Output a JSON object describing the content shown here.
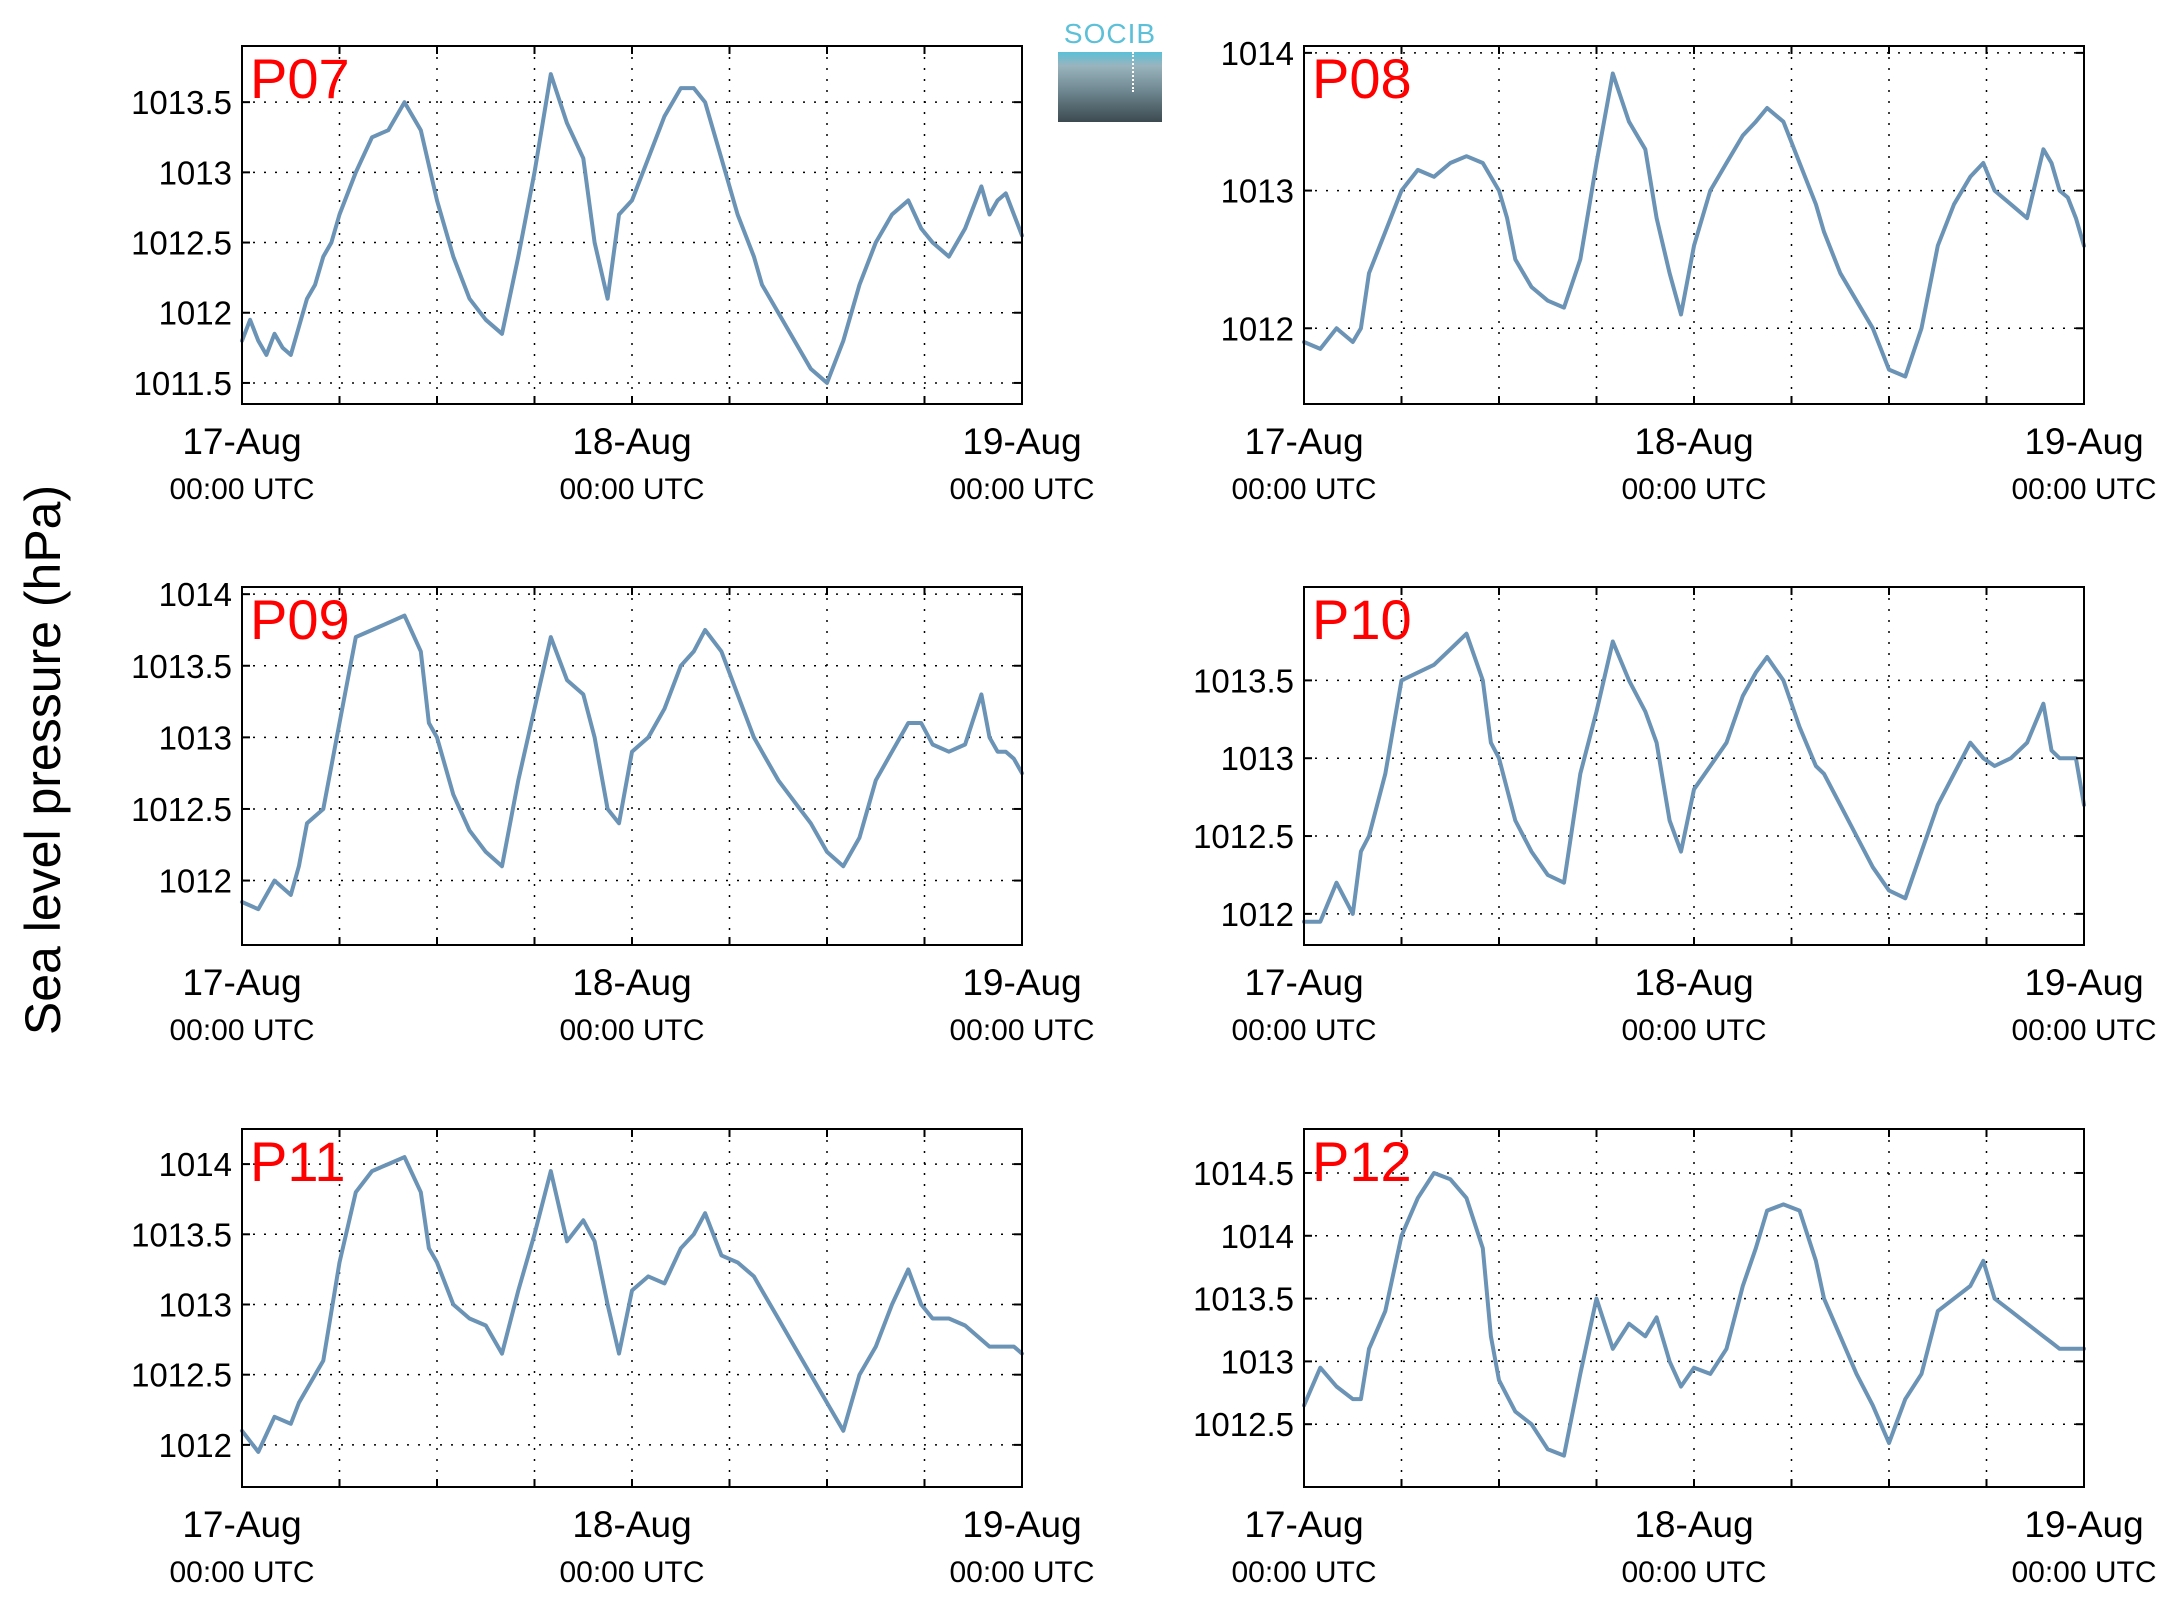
{
  "figure": {
    "ylabel": "Sea level pressure (hPa)",
    "logo_text": "SOCIB",
    "colors": {
      "line": "#6a93b5",
      "panel_label": "#ff0000",
      "axes": "#000000",
      "grid": "#000000"
    }
  },
  "chart_data": [
    {
      "type": "line",
      "panel": "P07",
      "grid": true,
      "x_ticks": [
        {
          "label": "17-Aug",
          "sub": "00:00 UTC",
          "x": 0
        },
        {
          "label": "18-Aug",
          "sub": "00:00 UTC",
          "x": 24
        },
        {
          "label": "19-Aug",
          "sub": "00:00 UTC",
          "x": 48
        }
      ],
      "xlim": [
        0,
        48
      ],
      "ylim": [
        1011.35,
        1013.9
      ],
      "yticks": [
        1011.5,
        1012,
        1012.5,
        1013,
        1013.5
      ],
      "x": [
        0,
        0.5,
        1,
        1.5,
        2,
        2.5,
        3,
        3.5,
        4,
        4.5,
        5,
        5.5,
        6,
        7,
        8,
        9,
        10,
        11,
        12,
        13,
        14,
        15,
        16,
        17,
        18,
        19,
        20,
        21,
        21.7,
        22.5,
        23.2,
        24,
        25,
        26,
        27,
        27.8,
        28.5,
        29.5,
        30.5,
        31.5,
        32,
        33,
        34,
        35,
        36,
        37,
        38,
        39,
        40,
        41,
        41.8,
        42.5,
        43.5,
        44.5,
        45.5,
        46,
        46.5,
        47,
        47.5,
        48
      ],
      "y": [
        1011.8,
        1011.95,
        1011.8,
        1011.7,
        1011.85,
        1011.75,
        1011.7,
        1011.9,
        1012.1,
        1012.2,
        1012.4,
        1012.5,
        1012.7,
        1013,
        1013.25,
        1013.3,
        1013.5,
        1013.3,
        1012.8,
        1012.4,
        1012.1,
        1011.95,
        1011.85,
        1012.4,
        1013,
        1013.7,
        1013.35,
        1013.1,
        1012.5,
        1012.1,
        1012.7,
        1012.8,
        1013.1,
        1013.4,
        1013.6,
        1013.6,
        1013.5,
        1013.1,
        1012.7,
        1012.4,
        1012.2,
        1012,
        1011.8,
        1011.6,
        1011.5,
        1011.8,
        1012.2,
        1012.5,
        1012.7,
        1012.8,
        1012.6,
        1012.5,
        1012.4,
        1012.6,
        1012.9,
        1012.7,
        1012.8,
        1012.85,
        1012.7,
        1012.55
      ]
    },
    {
      "type": "line",
      "panel": "P08",
      "grid": true,
      "x_ticks": [
        {
          "label": "17-Aug",
          "sub": "00:00 UTC",
          "x": 0
        },
        {
          "label": "18-Aug",
          "sub": "00:00 UTC",
          "x": 24
        },
        {
          "label": "19-Aug",
          "sub": "00:00 UTC",
          "x": 48
        }
      ],
      "xlim": [
        0,
        48
      ],
      "ylim": [
        1011.45,
        1014.05
      ],
      "yticks": [
        1012,
        1013,
        1014
      ],
      "x": [
        0,
        1,
        2,
        3,
        3.5,
        4,
        5,
        6,
        7,
        8,
        9,
        10,
        11,
        12,
        12.5,
        13,
        14,
        15,
        16,
        17,
        18,
        19,
        20,
        21,
        21.7,
        22.5,
        23.2,
        24,
        25,
        26,
        27,
        27.8,
        28.5,
        29.5,
        30.5,
        31.5,
        32,
        33,
        34,
        35,
        36,
        37,
        38,
        39,
        40,
        41,
        41.8,
        42.5,
        43.5,
        44.5,
        45.5,
        46,
        46.5,
        47,
        47.5,
        48
      ],
      "y": [
        1011.9,
        1011.85,
        1012,
        1011.9,
        1012,
        1012.4,
        1012.7,
        1013,
        1013.15,
        1013.1,
        1013.2,
        1013.25,
        1013.2,
        1013,
        1012.8,
        1012.5,
        1012.3,
        1012.2,
        1012.15,
        1012.5,
        1013.2,
        1013.85,
        1013.5,
        1013.3,
        1012.8,
        1012.4,
        1012.1,
        1012.6,
        1013.0,
        1013.2,
        1013.4,
        1013.5,
        1013.6,
        1013.5,
        1013.2,
        1012.9,
        1012.7,
        1012.4,
        1012.2,
        1012,
        1011.7,
        1011.65,
        1012.0,
        1012.6,
        1012.9,
        1013.1,
        1013.2,
        1013.0,
        1012.9,
        1012.8,
        1013.3,
        1013.2,
        1013.0,
        1012.95,
        1012.8,
        1012.6
      ]
    },
    {
      "type": "line",
      "panel": "P09",
      "grid": true,
      "x_ticks": [
        {
          "label": "17-Aug",
          "sub": "00:00 UTC",
          "x": 0
        },
        {
          "label": "18-Aug",
          "sub": "00:00 UTC",
          "x": 24
        },
        {
          "label": "19-Aug",
          "sub": "00:00 UTC",
          "x": 48
        }
      ],
      "xlim": [
        0,
        48
      ],
      "ylim": [
        1011.55,
        1014.05
      ],
      "yticks": [
        1012,
        1012.5,
        1013,
        1013.5,
        1014
      ],
      "x": [
        0,
        1,
        2,
        3,
        3.5,
        4,
        5,
        6,
        7,
        8,
        9,
        10,
        11,
        11.5,
        12,
        13,
        14,
        15,
        16,
        17,
        18,
        19,
        20,
        21,
        21.7,
        22.5,
        23.2,
        24,
        25,
        26,
        27,
        27.8,
        28.5,
        29.5,
        30.5,
        31.5,
        32,
        33,
        34,
        35,
        36,
        37,
        38,
        39,
        40,
        41,
        41.8,
        42.5,
        43.5,
        44.5,
        45.5,
        46,
        46.5,
        47,
        47.5,
        48
      ],
      "y": [
        1011.85,
        1011.8,
        1012,
        1011.9,
        1012.1,
        1012.4,
        1012.5,
        1013.1,
        1013.7,
        1013.75,
        1013.8,
        1013.85,
        1013.6,
        1013.1,
        1013.0,
        1012.6,
        1012.35,
        1012.2,
        1012.1,
        1012.7,
        1013.2,
        1013.7,
        1013.4,
        1013.3,
        1013.0,
        1012.5,
        1012.4,
        1012.9,
        1013.0,
        1013.2,
        1013.5,
        1013.6,
        1013.75,
        1013.6,
        1013.3,
        1013.0,
        1012.9,
        1012.7,
        1012.55,
        1012.4,
        1012.2,
        1012.1,
        1012.3,
        1012.7,
        1012.9,
        1013.1,
        1013.1,
        1012.95,
        1012.9,
        1012.95,
        1013.3,
        1013.0,
        1012.9,
        1012.9,
        1012.85,
        1012.75
      ]
    },
    {
      "type": "line",
      "panel": "P10",
      "grid": true,
      "x_ticks": [
        {
          "label": "17-Aug",
          "sub": "00:00 UTC",
          "x": 0
        },
        {
          "label": "18-Aug",
          "sub": "00:00 UTC",
          "x": 24
        },
        {
          "label": "19-Aug",
          "sub": "00:00 UTC",
          "x": 48
        }
      ],
      "xlim": [
        0,
        48
      ],
      "ylim": [
        1011.8,
        1014.1
      ],
      "yticks": [
        1012,
        1012.5,
        1013,
        1013.5
      ],
      "x": [
        0,
        1,
        2,
        3,
        3.5,
        4,
        5,
        6,
        7,
        8,
        9,
        10,
        11,
        11.5,
        12,
        13,
        14,
        15,
        16,
        17,
        18,
        19,
        20,
        21,
        21.7,
        22.5,
        23.2,
        24,
        25,
        26,
        27,
        27.8,
        28.5,
        29.5,
        30.5,
        31.5,
        32,
        33,
        34,
        35,
        36,
        37,
        38,
        39,
        40,
        41,
        41.8,
        42.5,
        43.5,
        44.5,
        45.5,
        46,
        46.5,
        47,
        47.5,
        48
      ],
      "y": [
        1011.95,
        1011.95,
        1012.2,
        1012.0,
        1012.4,
        1012.5,
        1012.9,
        1013.5,
        1013.55,
        1013.6,
        1013.7,
        1013.8,
        1013.5,
        1013.1,
        1013.0,
        1012.6,
        1012.4,
        1012.25,
        1012.2,
        1012.9,
        1013.3,
        1013.75,
        1013.5,
        1013.3,
        1013.1,
        1012.6,
        1012.4,
        1012.8,
        1012.95,
        1013.1,
        1013.4,
        1013.55,
        1013.65,
        1013.5,
        1013.2,
        1012.95,
        1012.9,
        1012.7,
        1012.5,
        1012.3,
        1012.15,
        1012.1,
        1012.4,
        1012.7,
        1012.9,
        1013.1,
        1013.0,
        1012.95,
        1013.0,
        1013.1,
        1013.35,
        1013.05,
        1013.0,
        1013.0,
        1013.0,
        1012.7
      ]
    },
    {
      "type": "line",
      "panel": "P11",
      "grid": true,
      "x_ticks": [
        {
          "label": "17-Aug",
          "sub": "00:00 UTC",
          "x": 0
        },
        {
          "label": "18-Aug",
          "sub": "00:00 UTC",
          "x": 24
        },
        {
          "label": "19-Aug",
          "sub": "00:00 UTC",
          "x": 48
        }
      ],
      "xlim": [
        0,
        48
      ],
      "ylim": [
        1011.7,
        1014.25
      ],
      "yticks": [
        1012,
        1012.5,
        1013,
        1013.5,
        1014
      ],
      "x": [
        0,
        1,
        2,
        3,
        3.5,
        4,
        5,
        6,
        7,
        8,
        9,
        10,
        11,
        11.5,
        12,
        13,
        14,
        15,
        16,
        17,
        18,
        19,
        20,
        21,
        21.7,
        22.5,
        23.2,
        24,
        25,
        26,
        27,
        27.8,
        28.5,
        29.5,
        30.5,
        31.5,
        32,
        33,
        34,
        35,
        36,
        37,
        38,
        39,
        40,
        41,
        41.8,
        42.5,
        43.5,
        44.5,
        45.5,
        46,
        46.5,
        47,
        47.5,
        48
      ],
      "y": [
        1012.1,
        1011.95,
        1012.2,
        1012.15,
        1012.3,
        1012.4,
        1012.6,
        1013.3,
        1013.8,
        1013.95,
        1014.0,
        1014.05,
        1013.8,
        1013.4,
        1013.3,
        1013.0,
        1012.9,
        1012.85,
        1012.65,
        1013.1,
        1013.5,
        1013.95,
        1013.45,
        1013.6,
        1013.45,
        1013.0,
        1012.65,
        1013.1,
        1013.2,
        1013.15,
        1013.4,
        1013.5,
        1013.65,
        1013.35,
        1013.3,
        1013.2,
        1013.1,
        1012.9,
        1012.7,
        1012.5,
        1012.3,
        1012.1,
        1012.5,
        1012.7,
        1013.0,
        1013.25,
        1013.0,
        1012.9,
        1012.9,
        1012.85,
        1012.75,
        1012.7,
        1012.7,
        1012.7,
        1012.7,
        1012.65
      ]
    },
    {
      "type": "line",
      "panel": "P12",
      "grid": true,
      "x_ticks": [
        {
          "label": "17-Aug",
          "sub": "00:00 UTC",
          "x": 0
        },
        {
          "label": "18-Aug",
          "sub": "00:00 UTC",
          "x": 24
        },
        {
          "label": "19-Aug",
          "sub": "00:00 UTC",
          "x": 48
        }
      ],
      "xlim": [
        0,
        48
      ],
      "ylim": [
        1012.0,
        1014.85
      ],
      "yticks": [
        1012.5,
        1013,
        1013.5,
        1014,
        1014.5
      ],
      "x": [
        0,
        1,
        2,
        3,
        3.5,
        4,
        5,
        6,
        7,
        8,
        9,
        10,
        11,
        11.5,
        12,
        13,
        14,
        15,
        16,
        17,
        18,
        19,
        20,
        21,
        21.7,
        22.5,
        23.2,
        24,
        25,
        26,
        27,
        27.8,
        28.5,
        29.5,
        30.5,
        31.5,
        32,
        33,
        34,
        35,
        36,
        37,
        38,
        39,
        40,
        41,
        41.8,
        42.5,
        43.5,
        44.5,
        45.5,
        46,
        46.5,
        47,
        47.5,
        48
      ],
      "y": [
        1012.65,
        1012.95,
        1012.8,
        1012.7,
        1012.7,
        1013.1,
        1013.4,
        1014.0,
        1014.3,
        1014.5,
        1014.45,
        1014.3,
        1013.9,
        1013.2,
        1012.85,
        1012.6,
        1012.5,
        1012.3,
        1012.25,
        1012.9,
        1013.5,
        1013.1,
        1013.3,
        1013.2,
        1013.35,
        1013.0,
        1012.8,
        1012.95,
        1012.9,
        1013.1,
        1013.6,
        1013.9,
        1014.2,
        1014.25,
        1014.2,
        1013.8,
        1013.5,
        1013.2,
        1012.9,
        1012.65,
        1012.35,
        1012.7,
        1012.9,
        1013.4,
        1013.5,
        1013.6,
        1013.8,
        1013.5,
        1013.4,
        1013.3,
        1013.2,
        1013.15,
        1013.1,
        1013.1,
        1013.1,
        1013.1
      ]
    }
  ]
}
